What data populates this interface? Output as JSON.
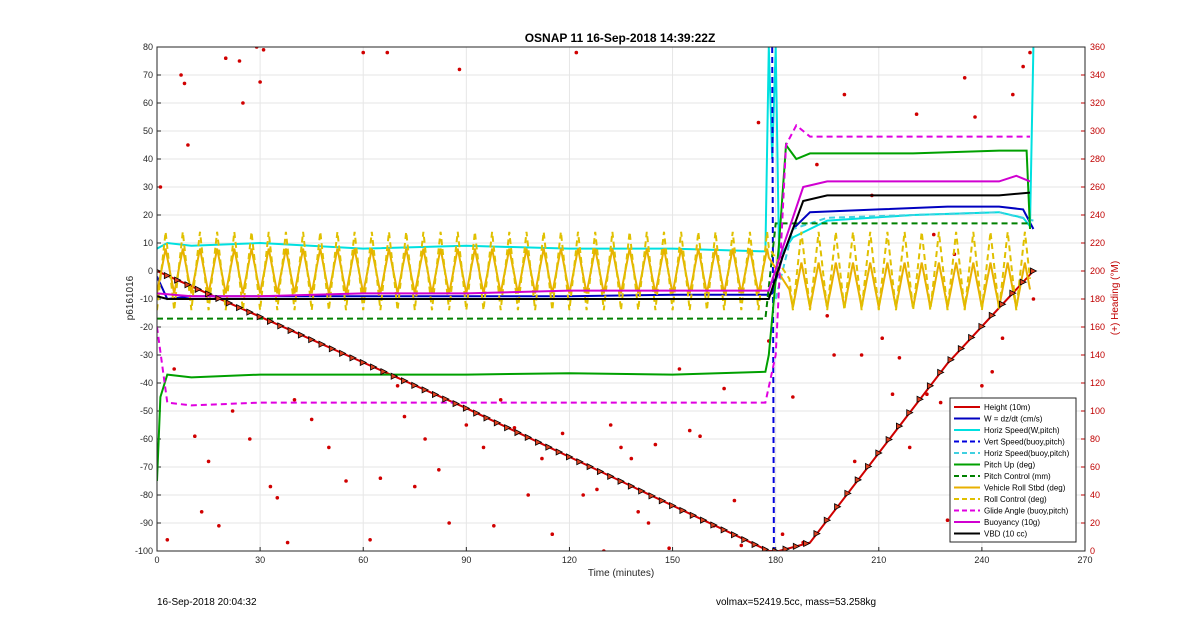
{
  "chart_data": {
    "type": "line",
    "title": "OSNAP 11 16-Sep-2018 14:39:22Z",
    "xlabel": "Time (minutes)",
    "ylabel": "p6161016",
    "ylabel_right": "(+) Heading (°M)",
    "xlim": [
      0,
      270
    ],
    "ylim": [
      -100,
      80
    ],
    "ylim_right": [
      0,
      360
    ],
    "xticks": [
      "0",
      "30",
      "60",
      "90",
      "120",
      "150",
      "180",
      "210",
      "240",
      "270"
    ],
    "yticks": [
      "80",
      "70",
      "60",
      "50",
      "40",
      "30",
      "20",
      "10",
      "0",
      "-10",
      "-20",
      "-30",
      "-40",
      "-50",
      "-60",
      "-70",
      "-80",
      "-90",
      "-100"
    ],
    "yticks_right": [
      "360",
      "340",
      "320",
      "300",
      "280",
      "260",
      "240",
      "220",
      "200",
      "180",
      "160",
      "140",
      "120",
      "100",
      "80",
      "60",
      "40",
      "20",
      "0"
    ],
    "grid": true,
    "legend_position": "bottom-right",
    "series": [
      {
        "name": "Height (10m)",
        "color": "#d00000",
        "style": "solid-marker",
        "points": [
          [
            0,
            0
          ],
          [
            90,
            -49
          ],
          [
            178,
            -100
          ],
          [
            181,
            -100
          ],
          [
            190,
            -97
          ],
          [
            210,
            -65
          ],
          [
            230,
            -33
          ],
          [
            255,
            0
          ]
        ]
      },
      {
        "name": "W = dz/dt (cm/s)",
        "color": "#0000c0",
        "style": "solid",
        "points": [
          [
            0,
            -2
          ],
          [
            3,
            -10
          ],
          [
            10,
            -9
          ],
          [
            30,
            -9
          ],
          [
            60,
            -9
          ],
          [
            90,
            -9
          ],
          [
            120,
            -9
          ],
          [
            150,
            -8.5
          ],
          [
            178,
            -8.5
          ],
          [
            179,
            -8
          ],
          [
            182,
            5
          ],
          [
            185,
            15
          ],
          [
            190,
            21
          ],
          [
            210,
            22
          ],
          [
            230,
            23
          ],
          [
            245,
            23
          ],
          [
            252,
            22
          ],
          [
            255,
            15
          ]
        ]
      },
      {
        "name": "Horiz Speed(W,pitch)",
        "color": "#00e0e0",
        "style": "solid",
        "points": [
          [
            0,
            8
          ],
          [
            3,
            10
          ],
          [
            10,
            9
          ],
          [
            30,
            10
          ],
          [
            60,
            8
          ],
          [
            90,
            9
          ],
          [
            120,
            8
          ],
          [
            150,
            8
          ],
          [
            177,
            7
          ],
          [
            178,
            80
          ],
          [
            179,
            40
          ],
          [
            180,
            80
          ],
          [
            181,
            5
          ],
          [
            185,
            12
          ],
          [
            195,
            18
          ],
          [
            220,
            20
          ],
          [
            245,
            21
          ],
          [
            252,
            19
          ],
          [
            254,
            16
          ],
          [
            255,
            80
          ]
        ]
      },
      {
        "name": "Vert Speed(buoy,pitch)",
        "color": "#0000dd",
        "style": "dashed",
        "points": [
          [
            179,
            80
          ],
          [
            179.5,
            -100
          ]
        ]
      },
      {
        "name": "Horiz Speed(buoy,pitch)",
        "color": "#40d0e0",
        "style": "dashed",
        "points": [
          [
            180,
            -10
          ],
          [
            185,
            15
          ],
          [
            195,
            19
          ],
          [
            220,
            20
          ],
          [
            245,
            21
          ],
          [
            255,
            18
          ]
        ]
      },
      {
        "name": "Pitch Up (deg)",
        "color": "#00a000",
        "style": "solid",
        "points": [
          [
            0,
            -75
          ],
          [
            1,
            -45
          ],
          [
            3,
            -37
          ],
          [
            10,
            -38
          ],
          [
            30,
            -37
          ],
          [
            60,
            -37
          ],
          [
            90,
            -37
          ],
          [
            120,
            -36.5
          ],
          [
            150,
            -37
          ],
          [
            177,
            -36
          ],
          [
            178,
            -30
          ],
          [
            181,
            10
          ],
          [
            183,
            45
          ],
          [
            186,
            40
          ],
          [
            190,
            42
          ],
          [
            200,
            42
          ],
          [
            220,
            42
          ],
          [
            245,
            43
          ],
          [
            253,
            43
          ],
          [
            254,
            15
          ]
        ]
      },
      {
        "name": "Pitch Control (mm)",
        "color": "#008000",
        "style": "dashed",
        "points": [
          [
            0,
            -17
          ],
          [
            30,
            -17
          ],
          [
            60,
            -17
          ],
          [
            90,
            -17
          ],
          [
            120,
            -17
          ],
          [
            150,
            -17
          ],
          [
            177,
            -17
          ],
          [
            180,
            17
          ],
          [
            185,
            17
          ],
          [
            220,
            17
          ],
          [
            254,
            17
          ]
        ]
      },
      {
        "name": "Vehicle Roll Stbd (deg)",
        "color": "#e8b000",
        "style": "zigzag",
        "amp": 8,
        "center": 0,
        "period": 5,
        "points": [
          [
            0,
            0
          ],
          [
            178,
            0
          ],
          [
            184,
            -5
          ],
          [
            254,
            -5
          ]
        ]
      },
      {
        "name": "Roll Control (deg)",
        "color": "#e0c000",
        "style": "dashed-zigzag",
        "amp": 14,
        "center": 0,
        "period": 5,
        "points": [
          [
            0,
            0
          ],
          [
            178,
            0
          ],
          [
            184,
            0
          ],
          [
            254,
            0
          ]
        ]
      },
      {
        "name": "Glide Angle (buoy,pitch)",
        "color": "#e000e0",
        "style": "dashed",
        "points": [
          [
            0,
            -20
          ],
          [
            3,
            -47
          ],
          [
            10,
            -48
          ],
          [
            30,
            -47
          ],
          [
            60,
            -47
          ],
          [
            90,
            -47
          ],
          [
            120,
            -47
          ],
          [
            150,
            -47
          ],
          [
            177,
            -47
          ],
          [
            180,
            -30
          ],
          [
            183,
            45
          ],
          [
            186,
            52
          ],
          [
            190,
            48
          ],
          [
            220,
            48
          ],
          [
            254,
            48
          ]
        ]
      },
      {
        "name": "Buoyancy (10g)",
        "color": "#d000d0",
        "style": "solid-marker",
        "points": [
          [
            0,
            -8
          ],
          [
            10,
            -9
          ],
          [
            30,
            -9
          ],
          [
            60,
            -8
          ],
          [
            90,
            -8
          ],
          [
            120,
            -7
          ],
          [
            150,
            -7
          ],
          [
            178,
            -7
          ],
          [
            182,
            8
          ],
          [
            188,
            30
          ],
          [
            195,
            32
          ],
          [
            220,
            32
          ],
          [
            245,
            32
          ],
          [
            250,
            34
          ],
          [
            254,
            32
          ]
        ]
      },
      {
        "name": "VBD (10 cc)",
        "color": "#000000",
        "style": "solid-marker",
        "points": [
          [
            0,
            -9
          ],
          [
            3,
            -10
          ],
          [
            30,
            -10
          ],
          [
            60,
            -10
          ],
          [
            90,
            -10
          ],
          [
            120,
            -10
          ],
          [
            150,
            -10
          ],
          [
            178,
            -10
          ],
          [
            182,
            5
          ],
          [
            188,
            25
          ],
          [
            195,
            27
          ],
          [
            220,
            27
          ],
          [
            245,
            27
          ],
          [
            254,
            28
          ]
        ]
      }
    ],
    "heading_points": [
      [
        1,
        260
      ],
      [
        3,
        8
      ],
      [
        5,
        130
      ],
      [
        7,
        340
      ],
      [
        8,
        334
      ],
      [
        9,
        290
      ],
      [
        11,
        82
      ],
      [
        13,
        28
      ],
      [
        15,
        64
      ],
      [
        18,
        18
      ],
      [
        20,
        352
      ],
      [
        22,
        100
      ],
      [
        24,
        350
      ],
      [
        25,
        320
      ],
      [
        27,
        80
      ],
      [
        29,
        360
      ],
      [
        30,
        335
      ],
      [
        31,
        358
      ],
      [
        33,
        46
      ],
      [
        35,
        38
      ],
      [
        38,
        6
      ],
      [
        40,
        108
      ],
      [
        45,
        94
      ],
      [
        50,
        74
      ],
      [
        55,
        50
      ],
      [
        60,
        356
      ],
      [
        62,
        8
      ],
      [
        65,
        52
      ],
      [
        67,
        356
      ],
      [
        70,
        118
      ],
      [
        72,
        96
      ],
      [
        75,
        46
      ],
      [
        78,
        80
      ],
      [
        82,
        58
      ],
      [
        85,
        20
      ],
      [
        88,
        344
      ],
      [
        90,
        90
      ],
      [
        95,
        74
      ],
      [
        98,
        18
      ],
      [
        100,
        108
      ],
      [
        104,
        88
      ],
      [
        108,
        40
      ],
      [
        112,
        66
      ],
      [
        115,
        12
      ],
      [
        118,
        84
      ],
      [
        122,
        356
      ],
      [
        124,
        40
      ],
      [
        128,
        44
      ],
      [
        130,
        0
      ],
      [
        132,
        90
      ],
      [
        135,
        74
      ],
      [
        138,
        66
      ],
      [
        140,
        28
      ],
      [
        143,
        20
      ],
      [
        145,
        76
      ],
      [
        149,
        2
      ],
      [
        152,
        130
      ],
      [
        155,
        86
      ],
      [
        158,
        82
      ],
      [
        162,
        18
      ],
      [
        165,
        116
      ],
      [
        168,
        36
      ],
      [
        170,
        4
      ],
      [
        175,
        306
      ],
      [
        178,
        150
      ],
      [
        182,
        12
      ],
      [
        185,
        110
      ],
      [
        188,
        6
      ],
      [
        192,
        276
      ],
      [
        195,
        168
      ],
      [
        197,
        140
      ],
      [
        200,
        326
      ],
      [
        203,
        64
      ],
      [
        205,
        140
      ],
      [
        208,
        254
      ],
      [
        211,
        152
      ],
      [
        214,
        112
      ],
      [
        216,
        138
      ],
      [
        219,
        74
      ],
      [
        221,
        312
      ],
      [
        224,
        112
      ],
      [
        226,
        226
      ],
      [
        228,
        106
      ],
      [
        230,
        22
      ],
      [
        232,
        212
      ],
      [
        235,
        338
      ],
      [
        238,
        310
      ],
      [
        240,
        118
      ],
      [
        243,
        128
      ],
      [
        246,
        152
      ],
      [
        249,
        326
      ],
      [
        252,
        346
      ],
      [
        254,
        356
      ],
      [
        255,
        180
      ]
    ]
  },
  "footer": {
    "timestamp": "16-Sep-2018 20:04:32",
    "info": "volmax=52419.5cc, mass=53.258kg"
  }
}
